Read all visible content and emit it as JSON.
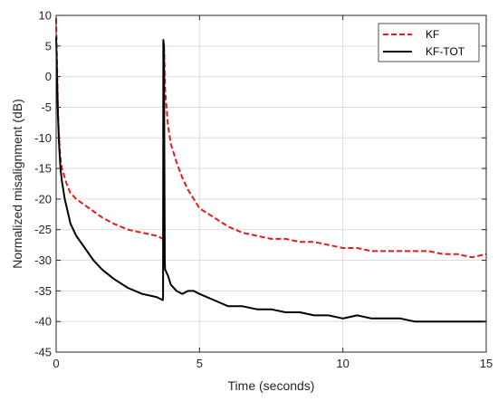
{
  "chart_data": {
    "type": "line",
    "title": "",
    "xlabel": "Time (seconds)",
    "ylabel": "Normalized misalignment (dB)",
    "xlim": [
      0,
      15
    ],
    "ylim": [
      -45,
      10
    ],
    "xticks": [
      0,
      5,
      10,
      15
    ],
    "yticks": [
      10,
      5,
      0,
      -5,
      -10,
      -15,
      -20,
      -25,
      -30,
      -35,
      -40,
      -45
    ],
    "grid": true,
    "legend_position": "top-right",
    "series": [
      {
        "name": "KF",
        "color": "#e41a1c",
        "linestyle": "dashed",
        "x": [
          0.0,
          0.03,
          0.06,
          0.1,
          0.15,
          0.2,
          0.3,
          0.4,
          0.5,
          0.7,
          1.0,
          1.3,
          1.6,
          2.0,
          2.5,
          3.0,
          3.5,
          3.74,
          3.75,
          3.77,
          3.8,
          3.85,
          3.9,
          4.0,
          4.2,
          4.4,
          4.6,
          4.8,
          5.0,
          5.5,
          6.0,
          6.5,
          7.0,
          7.5,
          8.0,
          8.5,
          9.0,
          9.5,
          10.0,
          10.5,
          11.0,
          11.5,
          12.0,
          12.5,
          13.0,
          13.5,
          14.0,
          14.5,
          15.0
        ],
        "y": [
          9.5,
          2.0,
          -5.0,
          -10.0,
          -13.5,
          -15.0,
          -16.5,
          -18.0,
          -19.0,
          -20.0,
          -21.0,
          -22.0,
          -23.0,
          -24.0,
          -25.0,
          -25.5,
          -26.0,
          -26.5,
          5.5,
          4.0,
          -2.0,
          -5.0,
          -8.0,
          -11.0,
          -14.0,
          -16.5,
          -18.5,
          -20.0,
          -21.5,
          -23.0,
          -24.5,
          -25.5,
          -26.0,
          -26.5,
          -26.5,
          -27.0,
          -27.0,
          -27.5,
          -28.0,
          -28.0,
          -28.5,
          -28.5,
          -28.5,
          -28.5,
          -28.5,
          -29.0,
          -29.0,
          -29.5,
          -29.0
        ]
      },
      {
        "name": "KF-TOT",
        "color": "#000000",
        "linestyle": "solid",
        "x": [
          0.0,
          0.03,
          0.06,
          0.1,
          0.15,
          0.2,
          0.3,
          0.4,
          0.5,
          0.7,
          1.0,
          1.3,
          1.6,
          2.0,
          2.5,
          3.0,
          3.5,
          3.72,
          3.73,
          3.74,
          3.76,
          3.78,
          3.79,
          3.8,
          3.9,
          4.0,
          4.2,
          4.4,
          4.6,
          4.8,
          5.0,
          5.5,
          6.0,
          6.5,
          7.0,
          7.5,
          8.0,
          8.5,
          9.0,
          9.5,
          10.0,
          10.5,
          11.0,
          11.5,
          12.0,
          12.5,
          13.0,
          13.5,
          14.0,
          14.5,
          15.0
        ],
        "y": [
          6.5,
          0.0,
          -6.0,
          -11.0,
          -15.0,
          -17.0,
          -20.0,
          -22.0,
          -24.0,
          -26.0,
          -28.0,
          -30.0,
          -31.5,
          -33.0,
          -34.5,
          -35.5,
          -36.0,
          -36.5,
          -36.0,
          6.0,
          5.0,
          -20.0,
          -30.0,
          -31.5,
          -32.5,
          -34.0,
          -35.0,
          -35.5,
          -35.0,
          -35.0,
          -35.5,
          -36.5,
          -37.5,
          -37.5,
          -38.0,
          -38.0,
          -38.5,
          -38.5,
          -39.0,
          -39.0,
          -39.5,
          -39.0,
          -39.5,
          -39.5,
          -39.5,
          -40.0,
          -40.0,
          -40.0,
          -40.0,
          -40.0,
          -40.0
        ]
      }
    ]
  }
}
